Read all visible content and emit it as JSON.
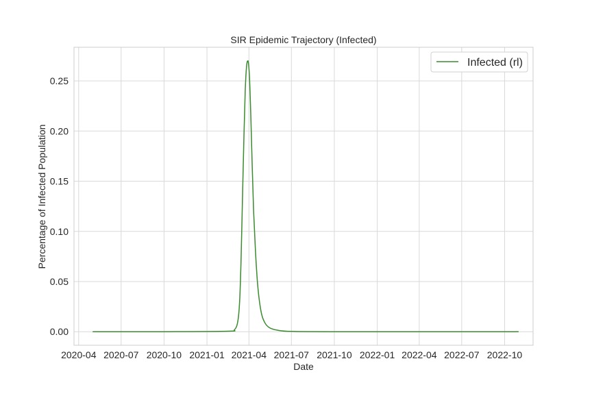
{
  "chart_data": {
    "type": "line",
    "title": "SIR Epidemic Trajectory (Infected)",
    "xlabel": "Date",
    "ylabel": "Percentage of Infected Population",
    "x_axis_type": "date",
    "xlim": [
      "2020-03-22",
      "2022-12-01"
    ],
    "ylim": [
      -0.0135,
      0.2835
    ],
    "x_ticks": [
      "2020-04-01",
      "2020-07-01",
      "2020-10-01",
      "2021-01-01",
      "2021-04-01",
      "2021-07-01",
      "2021-10-01",
      "2022-01-01",
      "2022-04-01",
      "2022-07-01",
      "2022-10-01"
    ],
    "x_tick_labels": [
      "2020-04",
      "2020-07",
      "2020-10",
      "2021-01",
      "2021-04",
      "2021-07",
      "2021-10",
      "2022-01",
      "2022-04",
      "2022-07",
      "2022-10"
    ],
    "y_ticks": [
      0.0,
      0.05,
      0.1,
      0.15,
      0.2,
      0.25
    ],
    "y_tick_labels": [
      "0.00",
      "0.05",
      "0.10",
      "0.15",
      "0.20",
      "0.25"
    ],
    "grid": true,
    "legend_position": "top-right",
    "series": [
      {
        "name": "Infected (rl)",
        "color": "#3a8a2e",
        "points": [
          [
            "2020-05-01",
            0.0
          ],
          [
            "2020-10-01",
            0.0
          ],
          [
            "2021-02-15",
            0.0005
          ],
          [
            "2021-03-01",
            0.002
          ],
          [
            "2021-03-08",
            0.01
          ],
          [
            "2021-03-12",
            0.03
          ],
          [
            "2021-03-15",
            0.07
          ],
          [
            "2021-03-18",
            0.13
          ],
          [
            "2021-03-21",
            0.19
          ],
          [
            "2021-03-24",
            0.24
          ],
          [
            "2021-03-27",
            0.265
          ],
          [
            "2021-03-30",
            0.27
          ],
          [
            "2021-04-02",
            0.255
          ],
          [
            "2021-04-05",
            0.215
          ],
          [
            "2021-04-08",
            0.165
          ],
          [
            "2021-04-11",
            0.12
          ],
          [
            "2021-04-15",
            0.08
          ],
          [
            "2021-04-20",
            0.045
          ],
          [
            "2021-04-27",
            0.02
          ],
          [
            "2021-05-05",
            0.009
          ],
          [
            "2021-05-15",
            0.004
          ],
          [
            "2021-06-01",
            0.0015
          ],
          [
            "2021-07-01",
            0.0003
          ],
          [
            "2021-10-01",
            0.0
          ],
          [
            "2022-10-31",
            0.0
          ]
        ]
      }
    ]
  }
}
